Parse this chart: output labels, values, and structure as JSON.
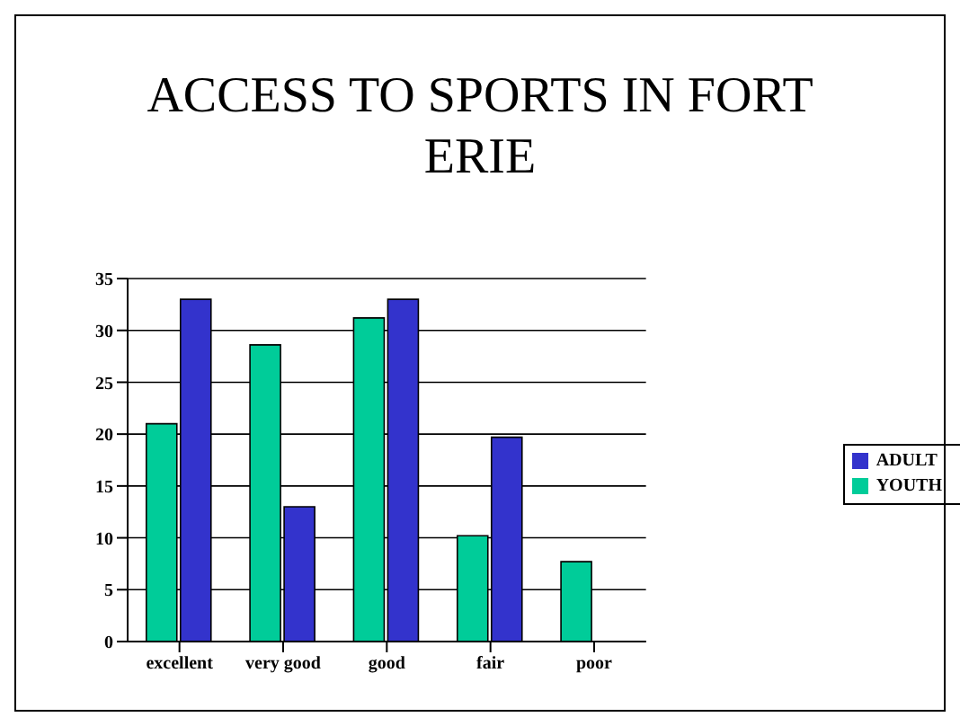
{
  "chart_data": {
    "type": "bar",
    "title": "ACCESS TO SPORTS IN FORT ERIE",
    "categories": [
      "excellent",
      "very good",
      "good",
      "fair",
      "poor"
    ],
    "series": [
      {
        "name": "YOUTH",
        "color": "#00cc99",
        "values": [
          21,
          28.6,
          31.2,
          10.2,
          7.7
        ]
      },
      {
        "name": "ADULT",
        "color": "#3333cc",
        "values": [
          33,
          13,
          33,
          19.7,
          0
        ]
      }
    ],
    "ylim": [
      0,
      35
    ],
    "yticks": [
      0,
      5,
      10,
      15,
      20,
      25,
      30,
      35
    ],
    "grid": "y",
    "legend": "right"
  }
}
